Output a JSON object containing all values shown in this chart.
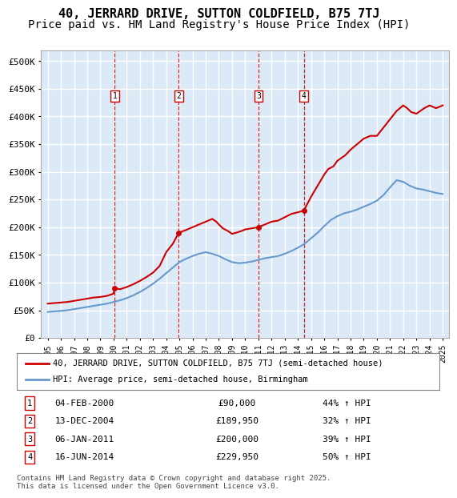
{
  "title": "40, JERRARD DRIVE, SUTTON COLDFIELD, B75 7TJ",
  "subtitle": "Price paid vs. HM Land Registry's House Price Index (HPI)",
  "title_fontsize": 11,
  "subtitle_fontsize": 10,
  "background_color": "#ffffff",
  "plot_bg_color": "#dce9f7",
  "grid_color": "#ffffff",
  "ylim": [
    0,
    520000
  ],
  "yticks": [
    0,
    50000,
    100000,
    150000,
    200000,
    250000,
    300000,
    350000,
    400000,
    450000,
    500000
  ],
  "ytick_labels": [
    "£0",
    "£50K",
    "£100K",
    "£150K",
    "£200K",
    "£250K",
    "£300K",
    "£350K",
    "£400K",
    "£450K",
    "£500K"
  ],
  "xlim_start": 1994.5,
  "xlim_end": 2025.5,
  "xtick_years": [
    1995,
    1996,
    1997,
    1998,
    1999,
    2000,
    2001,
    2002,
    2003,
    2004,
    2005,
    2006,
    2007,
    2008,
    2009,
    2010,
    2011,
    2012,
    2013,
    2014,
    2015,
    2016,
    2017,
    2018,
    2019,
    2020,
    2021,
    2022,
    2023,
    2024,
    2025
  ],
  "red_line_color": "#cc0000",
  "blue_line_color": "#6699cc",
  "vline_color": "#cc0000",
  "sales": [
    {
      "num": 1,
      "year": 2000.09,
      "price": 90000,
      "label": "04-FEB-2000",
      "pct": "44%",
      "dir": "↑"
    },
    {
      "num": 2,
      "year": 2004.95,
      "price": 189950,
      "label": "13-DEC-2004",
      "pct": "32%",
      "dir": "↑"
    },
    {
      "num": 3,
      "year": 2011.01,
      "price": 200000,
      "label": "06-JAN-2011",
      "pct": "39%",
      "dir": "↑"
    },
    {
      "num": 4,
      "year": 2014.45,
      "price": 229950,
      "label": "16-JUN-2014",
      "pct": "50%",
      "dir": "↑"
    }
  ],
  "legend_line1": "40, JERRARD DRIVE, SUTTON COLDFIELD, B75 7TJ (semi-detached house)",
  "legend_line2": "HPI: Average price, semi-detached house, Birmingham",
  "footer": "Contains HM Land Registry data © Crown copyright and database right 2025.\nThis data is licensed under the Open Government Licence v3.0.",
  "red_x": [
    1995.0,
    1995.5,
    1996.0,
    1996.5,
    1997.0,
    1997.5,
    1998.0,
    1998.5,
    1999.0,
    1999.5,
    2000.0,
    2000.09,
    2000.5,
    2001.0,
    2001.5,
    2002.0,
    2002.5,
    2003.0,
    2003.5,
    2004.0,
    2004.5,
    2004.95,
    2005.5,
    2006.0,
    2006.5,
    2007.0,
    2007.5,
    2007.8,
    2008.0,
    2008.3,
    2008.7,
    2009.0,
    2009.3,
    2009.7,
    2010.0,
    2010.5,
    2011.0,
    2011.01,
    2011.5,
    2012.0,
    2012.5,
    2013.0,
    2013.5,
    2014.0,
    2014.45,
    2015.0,
    2015.5,
    2016.0,
    2016.3,
    2016.7,
    2017.0,
    2017.3,
    2017.6,
    2018.0,
    2018.5,
    2019.0,
    2019.5,
    2020.0,
    2020.5,
    2021.0,
    2021.5,
    2022.0,
    2022.3,
    2022.6,
    2023.0,
    2023.3,
    2023.6,
    2024.0,
    2024.5,
    2025.0
  ],
  "red_y": [
    62000,
    63000,
    64000,
    65000,
    67000,
    69000,
    71000,
    73000,
    74000,
    76000,
    80000,
    90000,
    88000,
    92000,
    97000,
    103000,
    110000,
    118000,
    130000,
    155000,
    170000,
    189950,
    195000,
    200000,
    205000,
    210000,
    215000,
    210000,
    205000,
    198000,
    193000,
    188000,
    190000,
    193000,
    196000,
    198000,
    200000,
    200000,
    205000,
    210000,
    212000,
    218000,
    224000,
    227000,
    229950,
    255000,
    275000,
    295000,
    305000,
    310000,
    320000,
    325000,
    330000,
    340000,
    350000,
    360000,
    365000,
    365000,
    380000,
    395000,
    410000,
    420000,
    415000,
    408000,
    405000,
    410000,
    415000,
    420000,
    415000,
    420000
  ],
  "blue_x": [
    1995.0,
    1995.5,
    1996.0,
    1996.5,
    1997.0,
    1997.5,
    1998.0,
    1998.5,
    1999.0,
    1999.5,
    2000.0,
    2000.5,
    2001.0,
    2001.5,
    2002.0,
    2002.5,
    2003.0,
    2003.5,
    2004.0,
    2004.5,
    2005.0,
    2005.5,
    2006.0,
    2006.5,
    2007.0,
    2007.5,
    2008.0,
    2008.5,
    2009.0,
    2009.5,
    2010.0,
    2010.5,
    2011.0,
    2011.5,
    2012.0,
    2012.5,
    2013.0,
    2013.5,
    2014.0,
    2014.5,
    2015.0,
    2015.5,
    2016.0,
    2016.5,
    2017.0,
    2017.5,
    2018.0,
    2018.5,
    2019.0,
    2019.5,
    2020.0,
    2020.5,
    2021.0,
    2021.5,
    2022.0,
    2022.5,
    2023.0,
    2023.5,
    2024.0,
    2024.5,
    2025.0
  ],
  "blue_y": [
    47000,
    48000,
    49000,
    50000,
    52000,
    54000,
    56000,
    58000,
    60000,
    62000,
    65000,
    68000,
    72000,
    77000,
    83000,
    90000,
    98000,
    107000,
    117000,
    127000,
    137000,
    143000,
    148000,
    152000,
    155000,
    152000,
    148000,
    142000,
    137000,
    135000,
    136000,
    138000,
    141000,
    144000,
    146000,
    148000,
    152000,
    157000,
    163000,
    170000,
    180000,
    190000,
    202000,
    213000,
    220000,
    225000,
    228000,
    232000,
    237000,
    242000,
    248000,
    258000,
    272000,
    285000,
    282000,
    275000,
    270000,
    268000,
    265000,
    262000,
    260000
  ]
}
